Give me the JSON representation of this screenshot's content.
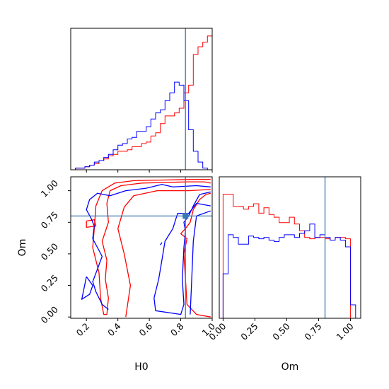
{
  "chart_data": {
    "type": "corner",
    "parameters": [
      "H0",
      "Om"
    ],
    "truths": {
      "H0": 0.83,
      "Om": 0.8
    },
    "truth_color": "#3a78b0",
    "series": [
      {
        "color": "#ff0000"
      },
      {
        "color": "#0000ff"
      }
    ],
    "panels": [
      {
        "id": "hist-H0",
        "kind": "histogram",
        "param": "H0",
        "xlim": [
          0.1,
          1.0
        ],
        "xticks": [
          0.2,
          0.4,
          0.6,
          0.8,
          1.0
        ],
        "show_tick_labels": false,
        "bin_edges": [
          0.1,
          0.13,
          0.16,
          0.19,
          0.22,
          0.25,
          0.28,
          0.31,
          0.34,
          0.37,
          0.4,
          0.43,
          0.46,
          0.49,
          0.52,
          0.55,
          0.58,
          0.61,
          0.64,
          0.67,
          0.7,
          0.73,
          0.76,
          0.79,
          0.82,
          0.85,
          0.88,
          0.91,
          0.94,
          0.97,
          1.0
        ],
        "counts": [
          [
            0,
            0.01,
            0.01,
            0.02,
            0.03,
            0.04,
            0.06,
            0.07,
            0.09,
            0.1,
            0.12,
            0.12,
            0.13,
            0.15,
            0.15,
            0.17,
            0.18,
            0.22,
            0.24,
            0.3,
            0.35,
            0.35,
            0.37,
            0.4,
            0.5,
            0.55,
            0.75,
            0.8,
            0.83,
            0.87
          ],
          [
            0,
            0.01,
            0.01,
            0.02,
            0.03,
            0.05,
            0.06,
            0.08,
            0.1,
            0.13,
            0.16,
            0.17,
            0.2,
            0.21,
            0.25,
            0.25,
            0.28,
            0.33,
            0.37,
            0.39,
            0.45,
            0.5,
            0.57,
            0.55,
            0.45,
            0.26,
            0.12,
            0.05,
            0.01,
            0
          ]
        ],
        "ymax": 0.92
      },
      {
        "id": "hist-Om",
        "kind": "histogram",
        "param": "Om",
        "xlim": [
          -0.03,
          1.08
        ],
        "xticks": [
          0.0,
          0.25,
          0.5,
          0.75,
          1.0
        ],
        "xtick_labels": [
          "0.00",
          "0.25",
          "0.50",
          "0.75",
          "1.00"
        ],
        "xlabel": "Om",
        "bin_edges": [
          0.0,
          0.04,
          0.08,
          0.12,
          0.16,
          0.2,
          0.24,
          0.28,
          0.32,
          0.36,
          0.4,
          0.44,
          0.48,
          0.52,
          0.56,
          0.6,
          0.64,
          0.68,
          0.72,
          0.76,
          0.8,
          0.84,
          0.88,
          0.92,
          0.96,
          1.0,
          1.04
        ],
        "counts": [
          [
            0.92,
            0.92,
            0.83,
            0.83,
            0.81,
            0.83,
            0.85,
            0.78,
            0.82,
            0.77,
            0.75,
            0.71,
            0.71,
            0.75,
            0.7,
            0.65,
            0.6,
            0.59,
            0.6,
            0.6,
            0.59,
            0.58,
            0.6,
            0.6,
            0.59,
            0
          ],
          [
            0.33,
            0.62,
            0.6,
            0.55,
            0.55,
            0.61,
            0.6,
            0.59,
            0.6,
            0.58,
            0.57,
            0.6,
            0.62,
            0.62,
            0.6,
            0.63,
            0.65,
            0.7,
            0.6,
            0.62,
            0.6,
            0.58,
            0.6,
            0.58,
            0.53,
            0.1
          ]
        ],
        "ymax": 1.05
      },
      {
        "id": "contour-H0-Om",
        "kind": "contour",
        "xparam": "H0",
        "yparam": "Om",
        "xlim": [
          0.1,
          1.0
        ],
        "ylim": [
          -0.01,
          1.11
        ],
        "xticks": [
          0.2,
          0.4,
          0.6,
          0.8,
          1.0
        ],
        "xtick_labels": [
          "0.2",
          "0.4",
          "0.6",
          "0.8",
          "1.0"
        ],
        "yticks": [
          0.0,
          0.25,
          0.5,
          0.75,
          1.0
        ],
        "ytick_labels": [
          "0.00",
          "0.25",
          "0.50",
          "0.75",
          "1.00"
        ],
        "xlabel": "H0",
        "ylabel": "Om",
        "truth_point": [
          0.83,
          0.8
        ],
        "contours": [
          {
            "series": 0,
            "points": [
              [
                0.99,
                1.06
              ],
              [
                0.95,
                1.07
              ],
              [
                0.85,
                1.07
              ],
              [
                0.7,
                1.065
              ],
              [
                0.55,
                1.06
              ],
              [
                0.42,
                1.04
              ],
              [
                0.35,
                1.0
              ],
              [
                0.33,
                0.9
              ],
              [
                0.34,
                0.75
              ],
              [
                0.3,
                0.6
              ],
              [
                0.33,
                0.45
              ],
              [
                0.32,
                0.3
              ],
              [
                0.34,
                0.15
              ],
              [
                0.33,
                0.02
              ],
              [
                0.31,
                0.02
              ],
              [
                0.29,
                0.15
              ],
              [
                0.28,
                0.35
              ],
              [
                0.24,
                0.55
              ],
              [
                0.25,
                0.7
              ],
              [
                0.26,
                0.88
              ],
              [
                0.3,
                1.0
              ],
              [
                0.38,
                1.06
              ],
              [
                0.5,
                1.08
              ],
              [
                0.7,
                1.085
              ],
              [
                0.9,
                1.09
              ],
              [
                0.99,
                1.09
              ]
            ]
          },
          {
            "series": 0,
            "points": [
              [
                0.99,
                0.0
              ],
              [
                0.9,
                0.02
              ],
              [
                0.84,
                0.1
              ],
              [
                0.83,
                0.3
              ],
              [
                0.82,
                0.5
              ],
              [
                0.84,
                0.62
              ],
              [
                0.8,
                0.66
              ],
              [
                0.83,
                0.7
              ],
              [
                0.86,
                0.75
              ],
              [
                0.88,
                0.85
              ],
              [
                0.92,
                0.93
              ],
              [
                0.96,
                0.97
              ],
              [
                0.99,
                0.98
              ]
            ]
          },
          {
            "series": 0,
            "points": [
              [
                0.45,
                0.0
              ],
              [
                0.48,
                0.25
              ],
              [
                0.44,
                0.5
              ],
              [
                0.4,
                0.7
              ],
              [
                0.44,
                0.87
              ],
              [
                0.5,
                0.96
              ],
              [
                0.65,
                1.0
              ],
              [
                0.85,
                1.0
              ],
              [
                0.99,
                1.01
              ]
            ]
          },
          {
            "series": 0,
            "points": [
              [
                0.2,
                0.76
              ],
              [
                0.25,
                0.77
              ],
              [
                0.26,
                0.72
              ],
              [
                0.2,
                0.71
              ],
              [
                0.2,
                0.76
              ]
            ]
          },
          {
            "series": 1,
            "points": [
              [
                0.99,
                1.03
              ],
              [
                0.9,
                1.04
              ],
              [
                0.75,
                1.03
              ],
              [
                0.68,
                1.05
              ],
              [
                0.58,
                1.02
              ],
              [
                0.45,
                1.0
              ],
              [
                0.35,
                0.96
              ],
              [
                0.27,
                0.98
              ],
              [
                0.22,
                0.93
              ],
              [
                0.2,
                0.85
              ],
              [
                0.23,
                0.78
              ],
              [
                0.25,
                0.72
              ],
              [
                0.24,
                0.62
              ],
              [
                0.27,
                0.55
              ],
              [
                0.3,
                0.48
              ],
              [
                0.27,
                0.38
              ],
              [
                0.24,
                0.28
              ],
              [
                0.26,
                0.2
              ],
              [
                0.3,
                0.1
              ],
              [
                0.34,
                0.06
              ]
            ]
          },
          {
            "series": 1,
            "points": [
              [
                0.2,
                0.32
              ],
              [
                0.24,
                0.25
              ],
              [
                0.22,
                0.18
              ],
              [
                0.17,
                0.14
              ],
              [
                0.2,
                0.32
              ]
            ]
          },
          {
            "series": 1,
            "points": [
              [
                0.99,
                0.88
              ],
              [
                0.9,
                0.9
              ],
              [
                0.85,
                0.82
              ],
              [
                0.78,
                0.82
              ],
              [
                0.75,
                0.7
              ],
              [
                0.7,
                0.6
              ],
              [
                0.68,
                0.45
              ],
              [
                0.66,
                0.3
              ],
              [
                0.63,
                0.15
              ],
              [
                0.64,
                0.05
              ],
              [
                0.8,
                0.02
              ],
              [
                0.82,
                0.1
              ],
              [
                0.81,
                0.3
              ],
              [
                0.82,
                0.55
              ],
              [
                0.83,
                0.68
              ],
              [
                0.82,
                0.75
              ],
              [
                0.85,
                0.8
              ],
              [
                0.88,
                0.88
              ],
              [
                0.92,
                0.97
              ],
              [
                0.99,
                0.99
              ]
            ]
          },
          {
            "series": 1,
            "points": [
              [
                0.86,
                0.02
              ],
              [
                0.87,
                0.3
              ],
              [
                0.88,
                0.6
              ],
              [
                0.9,
                0.8
              ],
              [
                0.99,
                0.84
              ]
            ]
          },
          {
            "series": 1,
            "points": [
              [
                0.67,
                0.57
              ],
              [
                0.68,
                0.59
              ]
            ]
          }
        ]
      },
      {
        "id": "empty-top-right",
        "kind": "empty"
      }
    ]
  }
}
